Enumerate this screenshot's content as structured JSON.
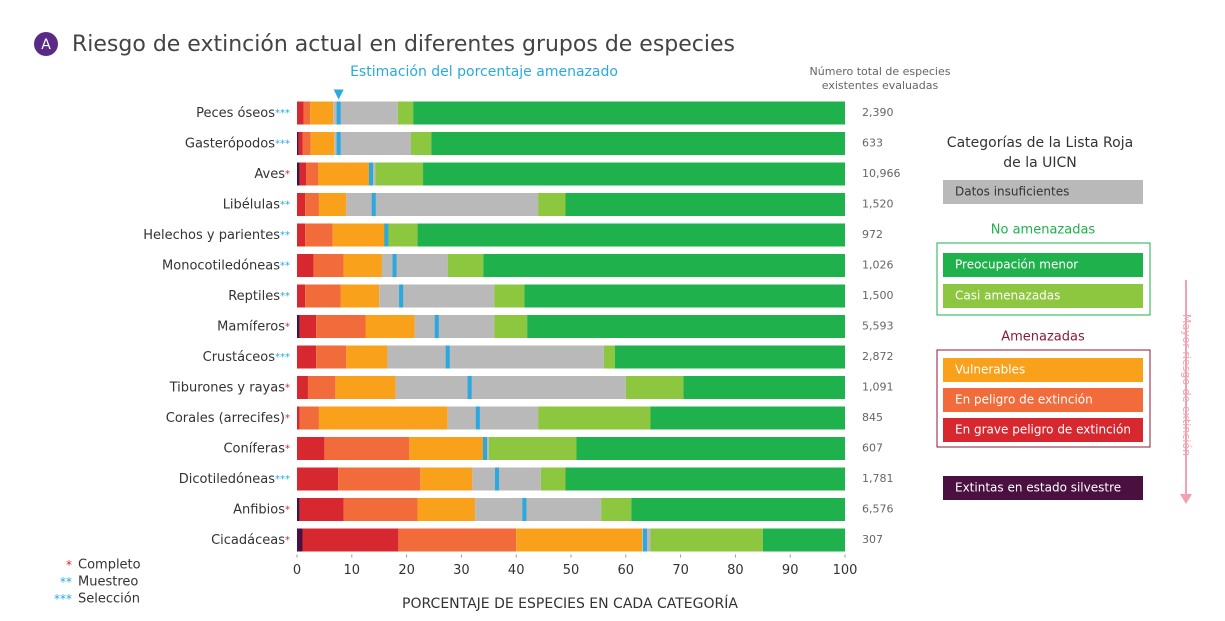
{
  "chart_data": {
    "type": "stacked-barh",
    "panel": "A",
    "title": "Riesgo de extinción actual en diferentes grupos de especies",
    "estimate_label": "Estimación del porcentaje amenazado",
    "totals_title": [
      "Número total de especies",
      "existentes evaluadas"
    ],
    "xlabel": "PORCENTAJE DE ESPECIES EN CADA CATEGORÍA",
    "xlim": [
      0,
      100
    ],
    "xticks": [
      0,
      10,
      20,
      30,
      40,
      50,
      60,
      70,
      80,
      90,
      100
    ],
    "categories": [
      "Peces óseos",
      "Gasterópodos",
      "Aves",
      "Libélulas",
      "Helechos y parientes",
      "Monocotiledóneas",
      "Reptiles",
      "Mamíferos",
      "Crustáceos",
      "Tiburones y rayas",
      "Corales (arrecifes)",
      "Coníferas",
      "Dicotiledóneas",
      "Anfibios",
      "Cicadáceas"
    ],
    "category_marks": [
      "***",
      "***",
      "*",
      "**",
      "**",
      "**",
      "**",
      "*",
      "***",
      "*",
      "*",
      "*",
      "***",
      "*",
      "*"
    ],
    "series": [
      {
        "name": "Extintas en estado silvestre",
        "color": "#4a1040",
        "values": [
          0,
          0.3,
          0.5,
          0,
          0,
          0,
          0,
          0.5,
          0,
          0,
          0,
          0,
          0,
          0.5,
          1
        ]
      },
      {
        "name": "En grave peligro de extinción",
        "color": "#d7282f",
        "values": [
          1.2,
          0.7,
          1.2,
          1.5,
          1.5,
          3,
          1.5,
          3,
          3.5,
          2,
          0.5,
          5,
          7.5,
          8,
          17.5
        ]
      },
      {
        "name": "En peligro de extinción",
        "color": "#f26b3a",
        "values": [
          1.2,
          1.5,
          2.2,
          2.5,
          5,
          5.5,
          6.5,
          9,
          5.5,
          5,
          3.5,
          15.5,
          15,
          13.5,
          21.5
        ]
      },
      {
        "name": "Vulnerables",
        "color": "#f9a11b",
        "values": [
          4.2,
          4.3,
          9.6,
          5,
          9.5,
          7,
          7,
          9,
          7.5,
          11,
          23.5,
          13.5,
          9.5,
          10.5,
          23
        ]
      },
      {
        "name": "Datos insuficientes",
        "color": "#b9b9b9",
        "values": [
          11.8,
          14,
          0.8,
          35,
          0.5,
          12,
          21,
          14.5,
          39.5,
          42,
          16.5,
          1,
          12.5,
          23,
          1.5
        ]
      },
      {
        "name": "Casi amenazadas",
        "color": "#8dc63f",
        "values": [
          2.8,
          3.7,
          8.7,
          5,
          5.5,
          6.5,
          5.5,
          6,
          2,
          10.5,
          20.5,
          16,
          4.5,
          5.5,
          20.5
        ]
      },
      {
        "name": "Preocupación menor",
        "color": "#1fb14b",
        "values": [
          78.8,
          75.5,
          77,
          51,
          78,
          66,
          58.5,
          58,
          42,
          29.5,
          35.5,
          49,
          51,
          39,
          15
        ]
      }
    ],
    "estimate": {
      "color": "#29a9e0",
      "values": [
        7.6,
        7.6,
        13.5,
        14,
        16.3,
        17.8,
        19,
        25.5,
        27.5,
        31.5,
        33,
        34.3,
        36.5,
        41.5,
        63.5
      ]
    },
    "totals": {
      "values": [
        2390,
        633,
        10966,
        1520,
        972,
        1026,
        1500,
        5593,
        2872,
        1091,
        845,
        607,
        1781,
        6576,
        307
      ],
      "value_labels": [
        "2,390",
        "633",
        "10,966",
        "1,520",
        "972",
        "1,026",
        "1,500",
        "5,593",
        "2,872",
        "1,091",
        "845",
        "607",
        "1,781",
        "6,576",
        "307"
      ]
    },
    "legend_title": [
      "Categorías de la Lista Roja",
      "de la UICN"
    ],
    "legend_groups": [
      "No amenazadas",
      "Amenazadas"
    ],
    "risk_arrow": "Mayor riesgo de extinción",
    "notes": [
      {
        "mark": "*",
        "label": "Completo",
        "color": "#d7282f"
      },
      {
        "mark": "**",
        "label": "Muestreo",
        "color": "#29a9e0"
      },
      {
        "mark": "***",
        "label": "Selección",
        "color": "#29a9e0"
      }
    ]
  }
}
